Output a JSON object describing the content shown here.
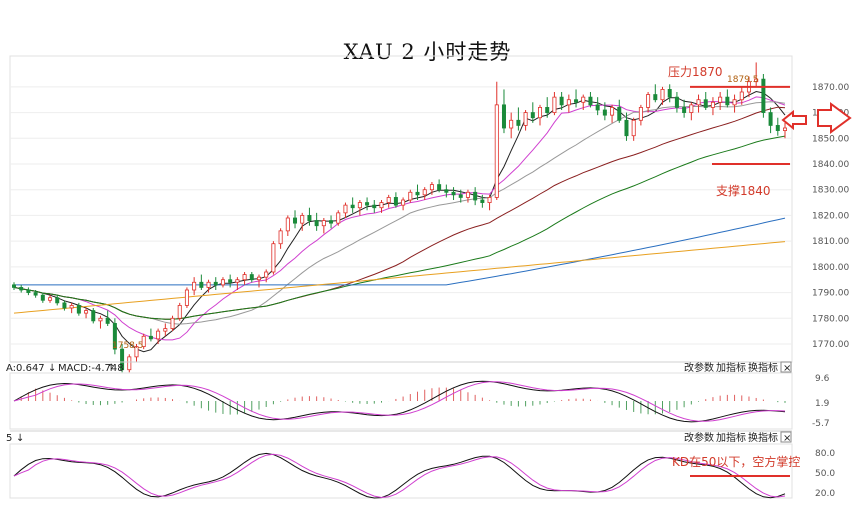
{
  "title": "XAU 2 小时走势",
  "chart_data": {
    "type": "candlestick",
    "y_ticks": [
      "1870.00",
      "1860.00",
      "1850.00",
      "1840.00",
      "1830.00",
      "1820.00",
      "1810.00",
      "1800.00",
      "1790.00",
      "1780.00",
      "1770.00"
    ],
    "ylim": [
      1763,
      1882
    ],
    "price_labels": {
      "high": "1879.5",
      "low": "1758.5"
    },
    "annotations": {
      "resistance": "压力1870",
      "support": "支撑1840",
      "kd_note": "KD在50以下，空方掌控"
    },
    "levels": {
      "resistance": 1870,
      "support": 1840
    },
    "candles": [
      [
        1793,
        1794,
        1791,
        1792
      ],
      [
        1792,
        1793,
        1790,
        1791
      ],
      [
        1791,
        1792,
        1789,
        1790
      ],
      [
        1790,
        1791,
        1788,
        1789
      ],
      [
        1789,
        1790,
        1786,
        1787
      ],
      [
        1787,
        1789,
        1786,
        1788
      ],
      [
        1788,
        1789,
        1785,
        1786
      ],
      [
        1786,
        1787,
        1783,
        1784
      ],
      [
        1784,
        1786,
        1782,
        1785
      ],
      [
        1785,
        1786,
        1781,
        1782
      ],
      [
        1782,
        1784,
        1780,
        1783
      ],
      [
        1783,
        1784,
        1778,
        1779
      ],
      [
        1779,
        1781,
        1776,
        1780
      ],
      [
        1780,
        1783,
        1777,
        1778
      ],
      [
        1778,
        1780,
        1766,
        1768
      ],
      [
        1768,
        1770,
        1759,
        1760
      ],
      [
        1760,
        1766,
        1759,
        1765
      ],
      [
        1765,
        1770,
        1763,
        1769
      ],
      [
        1769,
        1774,
        1768,
        1773
      ],
      [
        1773,
        1776,
        1771,
        1772
      ],
      [
        1772,
        1776,
        1770,
        1775
      ],
      [
        1775,
        1778,
        1773,
        1776
      ],
      [
        1776,
        1781,
        1775,
        1780
      ],
      [
        1780,
        1786,
        1779,
        1785
      ],
      [
        1785,
        1792,
        1784,
        1791
      ],
      [
        1791,
        1796,
        1789,
        1794
      ],
      [
        1794,
        1797,
        1791,
        1792
      ],
      [
        1792,
        1795,
        1790,
        1794
      ],
      [
        1794,
        1796,
        1791,
        1793
      ],
      [
        1793,
        1796,
        1792,
        1795
      ],
      [
        1795,
        1797,
        1792,
        1794
      ],
      [
        1794,
        1796,
        1791,
        1795
      ],
      [
        1795,
        1798,
        1793,
        1797
      ],
      [
        1797,
        1798,
        1794,
        1795
      ],
      [
        1795,
        1797,
        1792,
        1796
      ],
      [
        1796,
        1799,
        1794,
        1798
      ],
      [
        1798,
        1810,
        1797,
        1809
      ],
      [
        1809,
        1815,
        1807,
        1814
      ],
      [
        1814,
        1820,
        1812,
        1819
      ],
      [
        1819,
        1822,
        1815,
        1817
      ],
      [
        1817,
        1821,
        1814,
        1820
      ],
      [
        1820,
        1823,
        1816,
        1818
      ],
      [
        1818,
        1821,
        1814,
        1816
      ],
      [
        1816,
        1819,
        1813,
        1818
      ],
      [
        1818,
        1820,
        1815,
        1817
      ],
      [
        1817,
        1822,
        1816,
        1821
      ],
      [
        1821,
        1825,
        1819,
        1824
      ],
      [
        1824,
        1827,
        1821,
        1823
      ],
      [
        1823,
        1826,
        1820,
        1825
      ],
      [
        1825,
        1827,
        1822,
        1824
      ],
      [
        1824,
        1826,
        1821,
        1823
      ],
      [
        1823,
        1826,
        1821,
        1825
      ],
      [
        1825,
        1828,
        1823,
        1827
      ],
      [
        1827,
        1829,
        1823,
        1824
      ],
      [
        1824,
        1827,
        1822,
        1826
      ],
      [
        1826,
        1830,
        1825,
        1829
      ],
      [
        1829,
        1832,
        1826,
        1828
      ],
      [
        1828,
        1831,
        1826,
        1830
      ],
      [
        1830,
        1833,
        1828,
        1832
      ],
      [
        1832,
        1834,
        1829,
        1830
      ],
      [
        1830,
        1832,
        1827,
        1829
      ],
      [
        1829,
        1831,
        1826,
        1828
      ],
      [
        1828,
        1830,
        1825,
        1827
      ],
      [
        1827,
        1830,
        1825,
        1829
      ],
      [
        1829,
        1831,
        1824,
        1826
      ],
      [
        1826,
        1828,
        1823,
        1825
      ],
      [
        1825,
        1828,
        1822,
        1827
      ],
      [
        1827,
        1872,
        1826,
        1863
      ],
      [
        1863,
        1869,
        1852,
        1854
      ],
      [
        1854,
        1860,
        1850,
        1857
      ],
      [
        1857,
        1862,
        1853,
        1855
      ],
      [
        1855,
        1861,
        1853,
        1860
      ],
      [
        1860,
        1864,
        1856,
        1858
      ],
      [
        1858,
        1863,
        1855,
        1862
      ],
      [
        1862,
        1866,
        1858,
        1860
      ],
      [
        1860,
        1868,
        1859,
        1866
      ],
      [
        1866,
        1868,
        1861,
        1863
      ],
      [
        1863,
        1867,
        1860,
        1865
      ],
      [
        1865,
        1869,
        1862,
        1864
      ],
      [
        1864,
        1867,
        1861,
        1866
      ],
      [
        1866,
        1868,
        1862,
        1863
      ],
      [
        1863,
        1866,
        1859,
        1861
      ],
      [
        1861,
        1864,
        1857,
        1859
      ],
      [
        1859,
        1863,
        1856,
        1862
      ],
      [
        1862,
        1865,
        1856,
        1857
      ],
      [
        1857,
        1860,
        1849,
        1851
      ],
      [
        1851,
        1858,
        1849,
        1857
      ],
      [
        1857,
        1863,
        1855,
        1862
      ],
      [
        1862,
        1868,
        1860,
        1867
      ],
      [
        1867,
        1871,
        1864,
        1865
      ],
      [
        1865,
        1870,
        1863,
        1869
      ],
      [
        1869,
        1871,
        1864,
        1866
      ],
      [
        1866,
        1868,
        1860,
        1862
      ],
      [
        1862,
        1865,
        1858,
        1860
      ],
      [
        1860,
        1864,
        1857,
        1863
      ],
      [
        1863,
        1867,
        1860,
        1865
      ],
      [
        1865,
        1868,
        1861,
        1862
      ],
      [
        1862,
        1866,
        1859,
        1864
      ],
      [
        1864,
        1868,
        1861,
        1866
      ],
      [
        1866,
        1869,
        1862,
        1863
      ],
      [
        1863,
        1867,
        1860,
        1865
      ],
      [
        1865,
        1870,
        1863,
        1868
      ],
      [
        1868,
        1874,
        1866,
        1872
      ],
      [
        1872,
        1879.5,
        1870,
        1873
      ],
      [
        1873,
        1875,
        1858,
        1860
      ],
      [
        1860,
        1862,
        1852,
        1855
      ],
      [
        1855,
        1858,
        1851,
        1853
      ],
      [
        1853,
        1856,
        1850,
        1854
      ]
    ],
    "macd_axis": [
      "9.6",
      "1.9",
      "-5.7"
    ],
    "kd_axis": [
      "80.0",
      "50.0",
      "20.0"
    ]
  },
  "toolbar": {
    "params": "改参数",
    "add": "加指标",
    "swap": "换指标",
    "close": "×"
  },
  "macd_header": {
    "left": "A:0.647",
    "macd": "MACD:-4.748"
  },
  "kd_header": {
    "left": "5"
  }
}
